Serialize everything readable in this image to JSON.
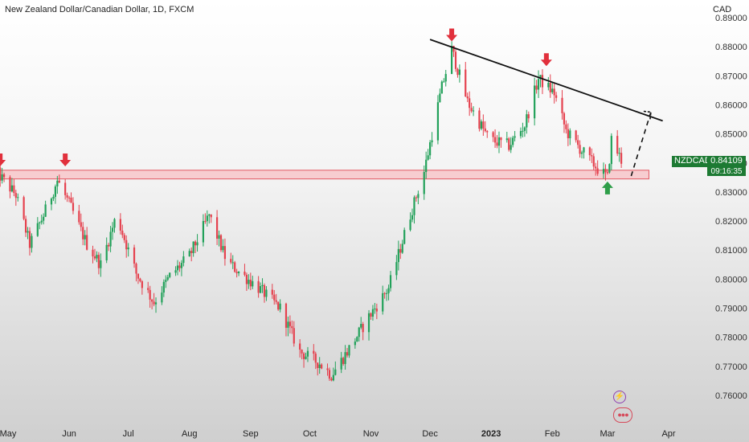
{
  "header": {
    "title": "New Zealand Dollar/Canadian Dollar, 1D, FXCM",
    "currency": "CAD"
  },
  "tag": {
    "symbol": "NZDCAD",
    "price": "0.84109",
    "timer": "09:16:35"
  },
  "icons": [
    "lightning-icon",
    "dots-icon"
  ],
  "colors": {
    "up": "#22a15a",
    "down": "#e5414e",
    "zone_fill": "#f7c6c9",
    "zone_stroke": "#e25963",
    "arrow_red": "#e1303c",
    "arrow_green": "#2e9e49",
    "tag_green": "#1d7a33"
  },
  "chart_data": {
    "type": "candlestick",
    "symbol": "NZDCAD",
    "timeframe": "1D",
    "y_range": [
      0.755,
      0.891
    ],
    "y_ticks": [
      "0.89000",
      "0.88000",
      "0.87000",
      "0.86000",
      "0.85000",
      "0.84000",
      "0.83000",
      "0.82000",
      "0.81000",
      "0.80000",
      "0.79000",
      "0.78000",
      "0.77000",
      "0.76000"
    ],
    "x_ticks": [
      {
        "label": "May",
        "date": "2022-05-01"
      },
      {
        "label": "Jun",
        "date": "2022-06-01"
      },
      {
        "label": "Jul",
        "date": "2022-07-01"
      },
      {
        "label": "Aug",
        "date": "2022-08-01"
      },
      {
        "label": "Sep",
        "date": "2022-09-01"
      },
      {
        "label": "Oct",
        "date": "2022-10-01"
      },
      {
        "label": "Nov",
        "date": "2022-11-01"
      },
      {
        "label": "Dec",
        "date": "2022-12-01"
      },
      {
        "label": "2023",
        "date": "2023-01-01",
        "bold": true
      },
      {
        "label": "Feb",
        "date": "2023-02-01"
      },
      {
        "label": "Mar",
        "date": "2023-03-01"
      },
      {
        "label": "Apr",
        "date": "2023-04-01"
      }
    ],
    "price_path": [
      {
        "date": "2022-04-25",
        "price": 0.837
      },
      {
        "date": "2022-05-05",
        "price": 0.829
      },
      {
        "date": "2022-05-12",
        "price": 0.812
      },
      {
        "date": "2022-05-19",
        "price": 0.822
      },
      {
        "date": "2022-05-26",
        "price": 0.834
      },
      {
        "date": "2022-06-01",
        "price": 0.826
      },
      {
        "date": "2022-06-10",
        "price": 0.812
      },
      {
        "date": "2022-06-17",
        "price": 0.805
      },
      {
        "date": "2022-06-25",
        "price": 0.822
      },
      {
        "date": "2022-07-05",
        "price": 0.802
      },
      {
        "date": "2022-07-14",
        "price": 0.792
      },
      {
        "date": "2022-07-22",
        "price": 0.801
      },
      {
        "date": "2022-08-01",
        "price": 0.808
      },
      {
        "date": "2022-08-11",
        "price": 0.822
      },
      {
        "date": "2022-08-20",
        "price": 0.806
      },
      {
        "date": "2022-09-05",
        "price": 0.797
      },
      {
        "date": "2022-09-16",
        "price": 0.79
      },
      {
        "date": "2022-09-26",
        "price": 0.775
      },
      {
        "date": "2022-10-06",
        "price": 0.771
      },
      {
        "date": "2022-10-12",
        "price": 0.767
      },
      {
        "date": "2022-10-20",
        "price": 0.775
      },
      {
        "date": "2022-10-31",
        "price": 0.787
      },
      {
        "date": "2022-11-10",
        "price": 0.797
      },
      {
        "date": "2022-11-20",
        "price": 0.82
      },
      {
        "date": "2022-11-28",
        "price": 0.837
      },
      {
        "date": "2022-12-07",
        "price": 0.866
      },
      {
        "date": "2022-12-12",
        "price": 0.879
      },
      {
        "date": "2022-12-20",
        "price": 0.861
      },
      {
        "date": "2022-12-31",
        "price": 0.848
      },
      {
        "date": "2023-01-10",
        "price": 0.846
      },
      {
        "date": "2023-01-18",
        "price": 0.853
      },
      {
        "date": "2023-01-25",
        "price": 0.869
      },
      {
        "date": "2023-02-02",
        "price": 0.864
      },
      {
        "date": "2023-02-08",
        "price": 0.851
      },
      {
        "date": "2023-02-15",
        "price": 0.845
      },
      {
        "date": "2023-02-24",
        "price": 0.838
      },
      {
        "date": "2023-03-01",
        "price": 0.835
      },
      {
        "date": "2023-03-03",
        "price": 0.848
      },
      {
        "date": "2023-03-08",
        "price": 0.841
      }
    ],
    "annotations": {
      "support_zone": {
        "start": "2022-04-25",
        "end": "2023-03-22",
        "price_low": 0.8345,
        "price_high": 0.8375
      },
      "trendline": {
        "start": {
          "date": "2022-12-01",
          "price": 0.8825
        },
        "end": {
          "date": "2023-03-29",
          "price": 0.8545
        }
      },
      "projection": [
        {
          "date": "2023-03-13",
          "price": 0.8355
        },
        {
          "date": "2023-03-23",
          "price": 0.8575
        }
      ],
      "arrows_down": [
        {
          "date": "2022-04-27",
          "price": 0.838
        },
        {
          "date": "2022-05-30",
          "price": 0.838
        },
        {
          "date": "2022-12-12",
          "price": 0.881
        },
        {
          "date": "2023-01-29",
          "price": 0.8725
        }
      ],
      "arrows_up": [
        {
          "date": "2023-03-01",
          "price": 0.835
        }
      ]
    }
  }
}
